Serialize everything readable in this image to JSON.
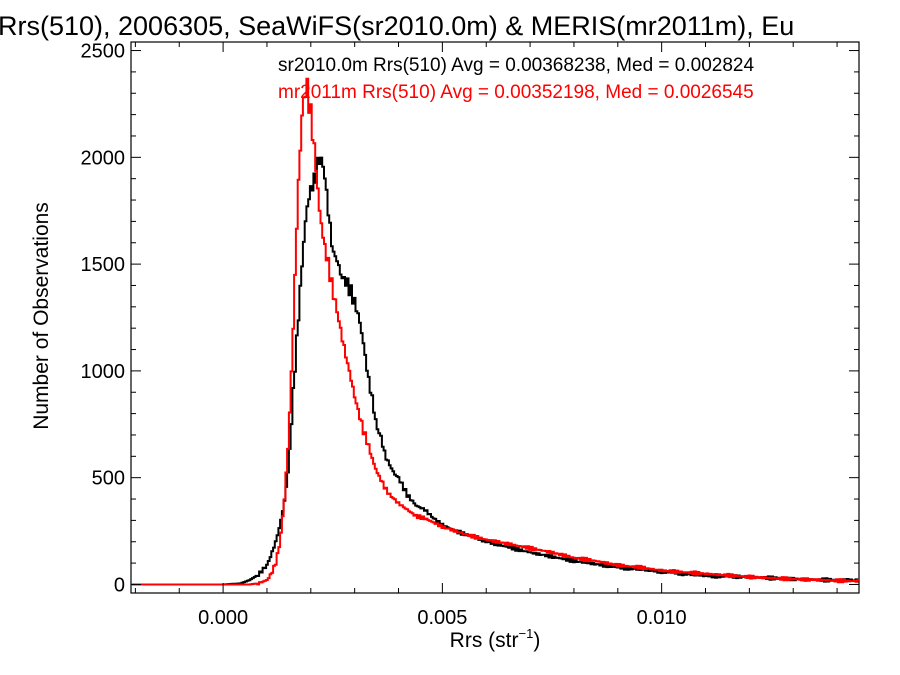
{
  "chart_data": {
    "type": "line",
    "title": "Rrs(510), 2006305, SeaWiFS(sr2010.0m) & MERIS(mr2011m), Eu",
    "xlabel_main": "Rrs (str",
    "xlabel_sup": "−1",
    "xlabel_close": ")",
    "ylabel": "Number of Observations",
    "xlim": [
      -0.0021,
      0.0145
    ],
    "ylim": [
      -40,
      2540
    ],
    "x_ticks": [
      {
        "value": 0.0,
        "label": "0.000"
      },
      {
        "value": 0.005,
        "label": "0.005"
      },
      {
        "value": 0.01,
        "label": "0.010"
      }
    ],
    "y_ticks": [
      {
        "value": 0,
        "label": "0"
      },
      {
        "value": 500,
        "label": "500"
      },
      {
        "value": 1000,
        "label": "1000"
      },
      {
        "value": 1500,
        "label": "1500"
      },
      {
        "value": 2000,
        "label": "2000"
      },
      {
        "value": 2500,
        "label": "2500"
      }
    ],
    "grid": false,
    "legend_position": "top-right",
    "series": [
      {
        "name": "sr2010.0m Rrs(510) Avg = 0.00368238, Med = 0.002824",
        "color": "#000000",
        "x": [
          -0.0021,
          0.0,
          0.0004,
          0.0006,
          0.0008,
          0.001,
          0.0011,
          0.0012,
          0.0013,
          0.0014,
          0.0015,
          0.0016,
          0.0017,
          0.0018,
          0.0019,
          0.002,
          0.0021,
          0.0022,
          0.0023,
          0.0024,
          0.0025,
          0.0026,
          0.0027,
          0.0028,
          0.0029,
          0.003,
          0.0031,
          0.0032,
          0.0033,
          0.0034,
          0.0035,
          0.0036,
          0.0037,
          0.0038,
          0.0039,
          0.004,
          0.0042,
          0.0044,
          0.0046,
          0.0048,
          0.005,
          0.0053,
          0.0056,
          0.006,
          0.0065,
          0.007,
          0.0075,
          0.008,
          0.0085,
          0.009,
          0.0095,
          0.01,
          0.011,
          0.012,
          0.013,
          0.014,
          0.0145
        ],
        "y": [
          0,
          0,
          5,
          20,
          45,
          90,
          140,
          200,
          280,
          390,
          560,
          900,
          1200,
          1500,
          1750,
          1850,
          1900,
          2000,
          1950,
          1750,
          1560,
          1520,
          1440,
          1420,
          1380,
          1320,
          1250,
          1130,
          980,
          870,
          740,
          690,
          600,
          560,
          520,
          500,
          420,
          370,
          350,
          310,
          280,
          250,
          230,
          200,
          175,
          150,
          130,
          110,
          95,
          80,
          70,
          60,
          40,
          35,
          25,
          20,
          20
        ]
      },
      {
        "name": "mr2011m Rrs(510) Avg = 0.00352198, Med = 0.0026545",
        "color": "#ff0000",
        "x": [
          -0.0021,
          0.0,
          0.0004,
          0.0006,
          0.0008,
          0.001,
          0.0011,
          0.0012,
          0.0013,
          0.0014,
          0.0015,
          0.0016,
          0.0017,
          0.0018,
          0.0019,
          0.002,
          0.0021,
          0.0022,
          0.0023,
          0.0024,
          0.0025,
          0.0026,
          0.0027,
          0.0028,
          0.0029,
          0.003,
          0.0031,
          0.0032,
          0.0033,
          0.0034,
          0.0035,
          0.0036,
          0.0037,
          0.0038,
          0.0039,
          0.004,
          0.0042,
          0.0044,
          0.0046,
          0.0048,
          0.005,
          0.0053,
          0.0056,
          0.006,
          0.0065,
          0.007,
          0.0075,
          0.008,
          0.0085,
          0.009,
          0.0095,
          0.01,
          0.011,
          0.012,
          0.013,
          0.014,
          0.0145
        ],
        "y": [
          0,
          0,
          0,
          0,
          5,
          20,
          50,
          100,
          200,
          400,
          700,
          1200,
          1800,
          2200,
          2350,
          2200,
          2000,
          1750,
          1600,
          1500,
          1380,
          1280,
          1170,
          1070,
          980,
          880,
          800,
          720,
          660,
          590,
          530,
          490,
          450,
          420,
          400,
          380,
          350,
          320,
          310,
          290,
          270,
          250,
          230,
          210,
          190,
          170,
          150,
          125,
          110,
          90,
          80,
          65,
          50,
          35,
          25,
          18,
          15
        ]
      }
    ]
  }
}
